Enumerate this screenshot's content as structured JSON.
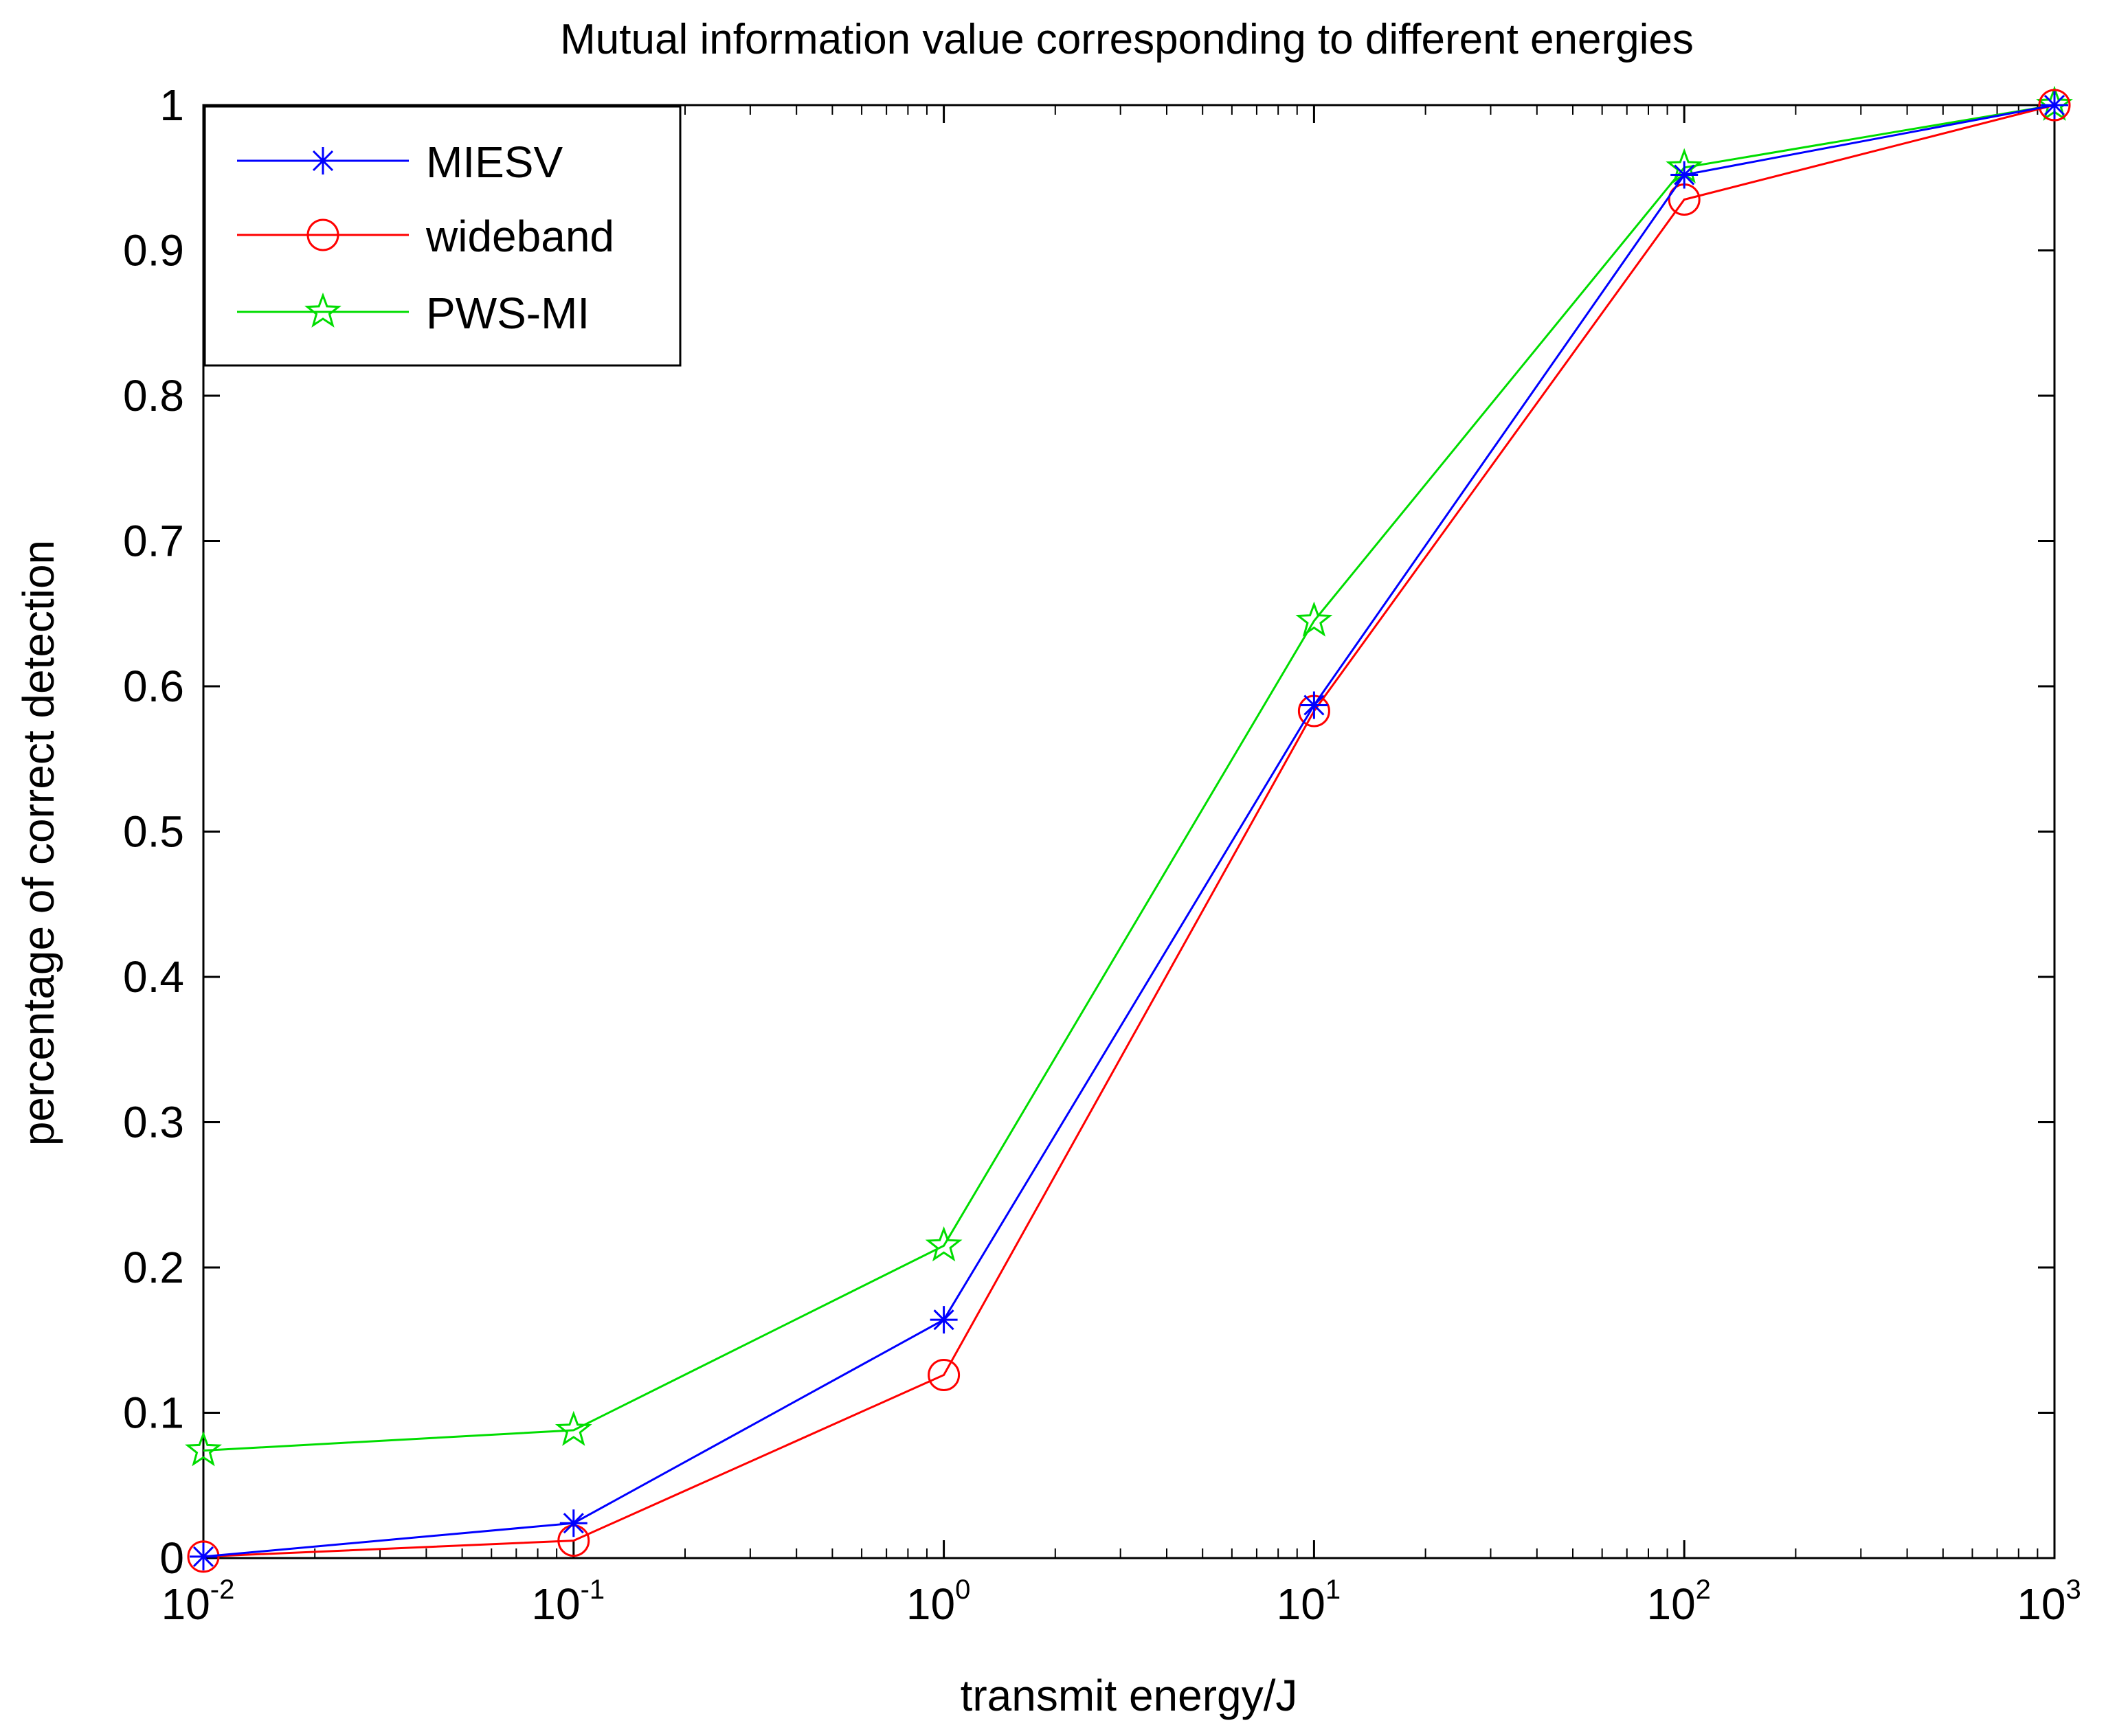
{
  "chart_data": {
    "type": "line",
    "title": "Mutual information value corresponding to different energies",
    "xlabel": "transmit energy/J",
    "ylabel": "percentage of correct detection",
    "xscale": "log",
    "xlim": [
      0.01,
      1000
    ],
    "ylim": [
      0,
      1
    ],
    "x": [
      0.01,
      0.1,
      1,
      10,
      100,
      1000
    ],
    "x_ticks": [
      {
        "base": "10",
        "exp": "-2"
      },
      {
        "base": "10",
        "exp": "-1"
      },
      {
        "base": "10",
        "exp": "0"
      },
      {
        "base": "10",
        "exp": "1"
      },
      {
        "base": "10",
        "exp": "2"
      },
      {
        "base": "10",
        "exp": "3"
      }
    ],
    "y_ticks": [
      "0",
      "0.1",
      "0.2",
      "0.3",
      "0.4",
      "0.5",
      "0.6",
      "0.7",
      "0.8",
      "0.9",
      "1"
    ],
    "legend_position": "top-left",
    "grid": false,
    "series": [
      {
        "name": "MIESV",
        "color": "#0000ff",
        "marker": "asterisk",
        "values": [
          0.001,
          0.024,
          0.164,
          0.587,
          0.952,
          1.0
        ]
      },
      {
        "name": "wideband",
        "color": "#ff0000",
        "marker": "circle",
        "values": [
          0.001,
          0.012,
          0.126,
          0.583,
          0.935,
          1.0
        ]
      },
      {
        "name": "PWS-MI",
        "color": "#00dd00",
        "marker": "star",
        "values": [
          0.074,
          0.088,
          0.215,
          0.645,
          0.957,
          1.0
        ]
      }
    ]
  }
}
